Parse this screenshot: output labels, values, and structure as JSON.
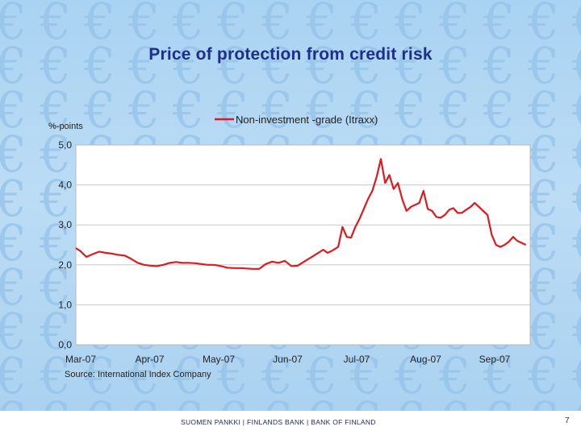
{
  "slide": {
    "title": "Price of protection from credit risk",
    "source": "Source: International Index Company",
    "footer": "SUOMEN PANKKI | FINLANDS BANK | BANK OF FINLAND",
    "page_number": "7",
    "background_glyph": "€"
  },
  "chart_data": {
    "type": "line",
    "title": "",
    "ylabel": "%-points",
    "xlabel": "",
    "ylim": [
      0,
      5
    ],
    "y_ticks": [
      "0,0",
      "1,0",
      "2,0",
      "3,0",
      "4,0",
      "5,0"
    ],
    "x_ticks": [
      "Mar-07",
      "Apr-07",
      "May-07",
      "Jun-07",
      "Jul-07",
      "Aug-07",
      "Sep-07"
    ],
    "grid": "horizontal",
    "legend_position": "top",
    "series": [
      {
        "name": "Non-investment -grade (Itraxx)",
        "color": "#e0191e",
        "x": [
          "2007-03-01",
          "2007-03-03",
          "2007-03-06",
          "2007-03-09",
          "2007-03-12",
          "2007-03-15",
          "2007-03-18",
          "2007-03-21",
          "2007-03-24",
          "2007-03-27",
          "2007-03-30",
          "2007-04-02",
          "2007-04-05",
          "2007-04-08",
          "2007-04-11",
          "2007-04-14",
          "2007-04-17",
          "2007-04-20",
          "2007-04-23",
          "2007-04-26",
          "2007-04-29",
          "2007-05-02",
          "2007-05-05",
          "2007-05-08",
          "2007-05-11",
          "2007-05-14",
          "2007-05-17",
          "2007-05-20",
          "2007-05-23",
          "2007-05-26",
          "2007-05-29",
          "2007-06-01",
          "2007-06-04",
          "2007-06-07",
          "2007-06-10",
          "2007-06-13",
          "2007-06-16",
          "2007-06-19",
          "2007-06-22",
          "2007-06-25",
          "2007-06-27",
          "2007-06-29",
          "2007-07-02",
          "2007-07-04",
          "2007-07-06",
          "2007-07-08",
          "2007-07-10",
          "2007-07-12",
          "2007-07-14",
          "2007-07-16",
          "2007-07-18",
          "2007-07-20",
          "2007-07-22",
          "2007-07-24",
          "2007-07-26",
          "2007-07-28",
          "2007-07-30",
          "2007-08-01",
          "2007-08-03",
          "2007-08-05",
          "2007-08-07",
          "2007-08-09",
          "2007-08-11",
          "2007-08-13",
          "2007-08-15",
          "2007-08-17",
          "2007-08-19",
          "2007-08-21",
          "2007-08-23",
          "2007-08-25",
          "2007-08-27",
          "2007-08-29",
          "2007-08-31",
          "2007-09-02",
          "2007-09-04",
          "2007-09-06",
          "2007-09-08",
          "2007-09-10",
          "2007-09-12",
          "2007-09-14",
          "2007-09-16",
          "2007-09-18",
          "2007-09-20",
          "2007-09-22",
          "2007-09-24",
          "2007-09-26",
          "2007-09-28"
        ],
        "values": [
          2.42,
          2.35,
          2.2,
          2.27,
          2.33,
          2.3,
          2.28,
          2.25,
          2.23,
          2.15,
          2.05,
          2.0,
          1.98,
          1.97,
          2.0,
          2.05,
          2.07,
          2.05,
          2.05,
          2.04,
          2.02,
          2.0,
          2.0,
          1.97,
          1.93,
          1.92,
          1.92,
          1.91,
          1.9,
          1.9,
          2.02,
          2.08,
          2.05,
          2.1,
          1.97,
          1.98,
          2.08,
          2.18,
          2.28,
          2.38,
          2.3,
          2.35,
          2.45,
          2.95,
          2.7,
          2.68,
          2.95,
          3.15,
          3.4,
          3.65,
          3.85,
          4.2,
          4.65,
          4.05,
          4.25,
          3.9,
          4.05,
          3.65,
          3.35,
          3.45,
          3.5,
          3.55,
          3.85,
          3.4,
          3.35,
          3.2,
          3.18,
          3.25,
          3.38,
          3.42,
          3.3,
          3.3,
          3.38,
          3.45,
          3.55,
          3.45,
          3.35,
          3.25,
          2.75,
          2.5,
          2.45,
          2.5,
          2.58,
          2.7,
          2.6,
          2.55,
          2.5
        ]
      }
    ]
  }
}
